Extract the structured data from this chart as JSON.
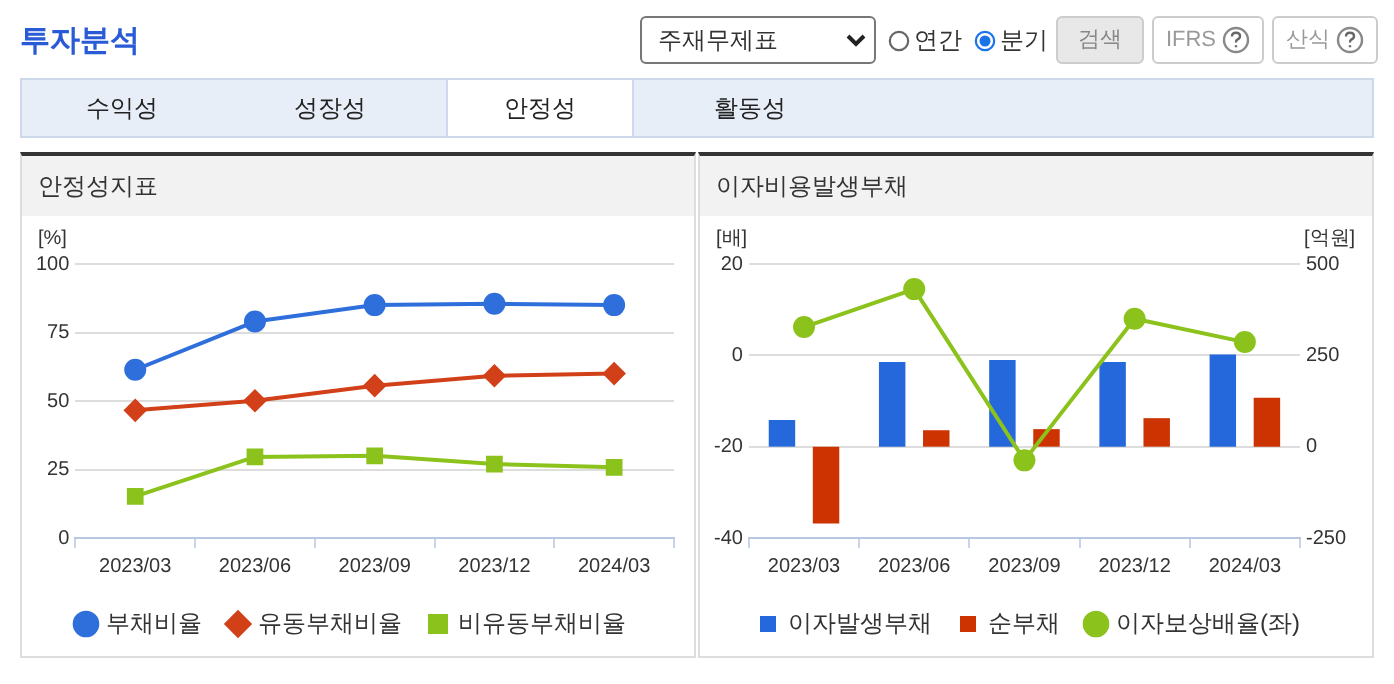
{
  "chart_data": [
    {
      "type": "other",
      "annotations": [
        "투자분석",
        "주재무제표",
        "연간",
        "분기",
        "검색",
        "IFRS",
        "산식",
        "수익성",
        "성장성",
        "안정성",
        "활동성"
      ]
    },
    {
      "type": "line",
      "title": "안정성지표",
      "ylabel": "[%]",
      "categories": [
        "2023/03",
        "2023/06",
        "2023/09",
        "2023/12",
        "2024/03"
      ],
      "ylim": [
        0,
        100
      ],
      "yticks": [
        0,
        25,
        50,
        75,
        100
      ],
      "grid": "y",
      "legend": "bottom",
      "series": [
        {
          "name": "부채비율",
          "color": "#2f6fdc",
          "marker": "circle",
          "values": [
            61.4,
            79,
            85,
            85.5,
            85
          ]
        },
        {
          "name": "유동부채비율",
          "color": "#d2401a",
          "marker": "diamond",
          "values": [
            46.6,
            50.1,
            55.6,
            59.2,
            60
          ]
        },
        {
          "name": "비유동부채비율",
          "color": "#8cc21c",
          "marker": "square",
          "values": [
            15.2,
            29.6,
            30,
            27,
            25.8
          ]
        }
      ]
    },
    {
      "type": "bar",
      "title": "이자비용발생부채",
      "ylabel": "[배]",
      "y2label": "[억원]",
      "categories": [
        "2023/03",
        "2023/06",
        "2023/09",
        "2023/12",
        "2024/03"
      ],
      "ylim": [
        -40,
        20
      ],
      "yticks": [
        -40,
        -20,
        0,
        20
      ],
      "y2lim": [
        -250,
        500
      ],
      "y2ticks": [
        -250,
        0,
        250,
        500
      ],
      "grid": "y",
      "legend": "bottom",
      "series": [
        {
          "name": "이자발생부채",
          "color": "#2468dc",
          "axis": "y2",
          "values": [
            73,
            232,
            237,
            232,
            252
          ]
        },
        {
          "name": "순부채",
          "color": "#cc3300",
          "axis": "y2",
          "values": [
            -210,
            45,
            48,
            78,
            134
          ]
        },
        {
          "name": "이자보상배율(좌)",
          "type": "line",
          "color": "#8cc21c",
          "marker": "circle",
          "axis": "y",
          "values": [
            6.2,
            14.5,
            -23,
            8,
            2.9
          ]
        }
      ]
    }
  ]
}
